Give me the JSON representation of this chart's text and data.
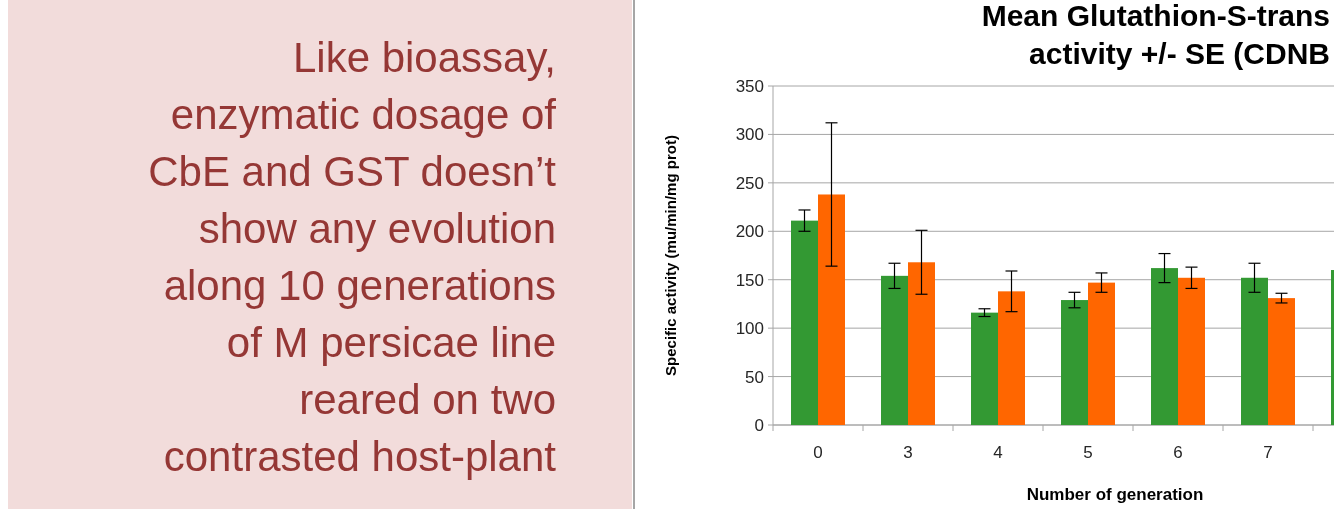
{
  "chart_data": [
    {
      "type": "other",
      "annotations": [
        "Like bioassay,",
        "enzymatic dosage of",
        "CbE and GST doesn’t",
        "show any evolution",
        "along 10 generations",
        "of M persicae line",
        "reared on two",
        "contrasted  host-plant"
      ]
    },
    {
      "type": "bar",
      "title": "Mean Glutathion-S-trans\nactivity +/- SE (CDNB",
      "xlabel": "Number of generation",
      "ylabel": "Specific activity (mu/min/mg prot)",
      "categories": [
        "0",
        "3",
        "4",
        "5",
        "6",
        "7",
        null
      ],
      "series": [
        {
          "color": "#339933",
          "values": [
            211,
            154,
            116,
            129,
            162,
            152,
            160
          ],
          "errors": [
            11,
            13,
            4,
            8,
            15,
            15,
            null
          ]
        },
        {
          "color": "#ff6600",
          "values": [
            238,
            168,
            138,
            147,
            152,
            131,
            null
          ],
          "errors": [
            74,
            33,
            21,
            10,
            11,
            5,
            null
          ]
        }
      ],
      "ylim": [
        0,
        350
      ],
      "yticks": [
        0,
        50,
        100,
        150,
        200,
        250,
        300,
        350
      ],
      "grid": "y"
    }
  ]
}
